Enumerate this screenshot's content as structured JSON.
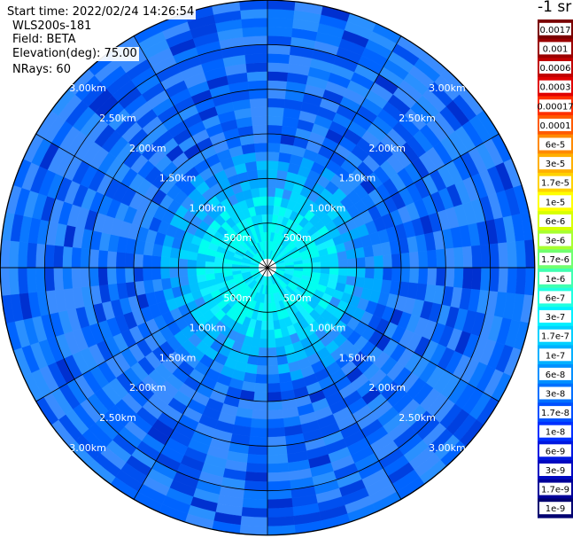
{
  "header": {
    "start_time": "Start time: 2022/02/24 14:26:54",
    "instrument": "WLS200s-181",
    "field": "Field: BETA",
    "elevation": "Elevation(deg): 75.00",
    "nrays": "NRays: 60"
  },
  "chart_data": {
    "type": "heatmap",
    "projection": "polar-ppi",
    "rays": 60,
    "max_range_km": 3.0,
    "range_ring_labels": [
      "500m",
      "1.00km",
      "1.50km",
      "2.00km",
      "2.50km",
      "3.00km"
    ],
    "range_ring_km": [
      0.5,
      1.0,
      1.5,
      2.0,
      2.5,
      3.0
    ],
    "colorbar": {
      "title": "-1 sr",
      "labels": [
        "0.0017",
        "0.001",
        "0.0006",
        "0.0003",
        "0.00017",
        "0.0001",
        "6e-5",
        "3e-5",
        "1.7e-5",
        "1e-5",
        "6e-6",
        "3e-6",
        "1.7e-6",
        "1e-6",
        "6e-7",
        "3e-7",
        "1.7e-7",
        "1e-7",
        "6e-8",
        "3e-8",
        "1.7e-8",
        "1e-8",
        "6e-9",
        "3e-9",
        "1.7e-9",
        "1e-9"
      ],
      "colors": [
        "#7a0000",
        "#9a0000",
        "#c00000",
        "#e00000",
        "#ff3000",
        "#ff5a00",
        "#ff8a00",
        "#ffb000",
        "#ffd200",
        "#ffff00",
        "#d8ff00",
        "#a8ff30",
        "#70ff70",
        "#40ffb0",
        "#20ffe0",
        "#00f0ff",
        "#00d0ff",
        "#00b0ff",
        "#0090ff",
        "#0070ff",
        "#0050ff",
        "#0030ff",
        "#0018e0",
        "#0008c0",
        "#000098",
        "#000070"
      ]
    },
    "grid": true
  }
}
